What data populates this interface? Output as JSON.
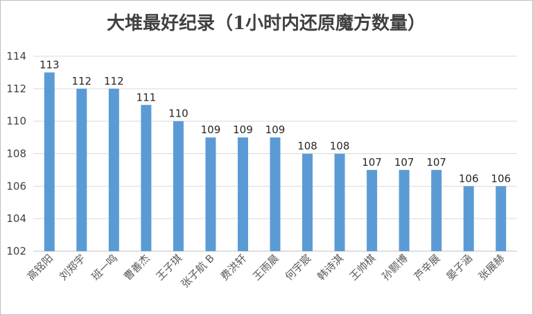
{
  "chart_data": {
    "type": "bar",
    "title": "大堆最好纪录（1小时内还原魔方数量）",
    "categories": [
      "高铭阳",
      "刘郑宇",
      "班一鸣",
      "曹善杰",
      "王子琪",
      "张子航 B",
      "费洪轩",
      "王雨晨",
      "何宇宸",
      "韩诗淇",
      "王帅棋",
      "孙颢博",
      "芦辛展",
      "晏子涵",
      "张展赫"
    ],
    "values": [
      113,
      112,
      112,
      111,
      110,
      109,
      109,
      109,
      108,
      108,
      107,
      107,
      107,
      106,
      106
    ],
    "ylim": [
      102,
      114
    ],
    "yticks": [
      102,
      104,
      106,
      108,
      110,
      112,
      114
    ],
    "grid": true,
    "data_labels": true,
    "legend": "none",
    "bar_color": "#5b9bd5"
  }
}
